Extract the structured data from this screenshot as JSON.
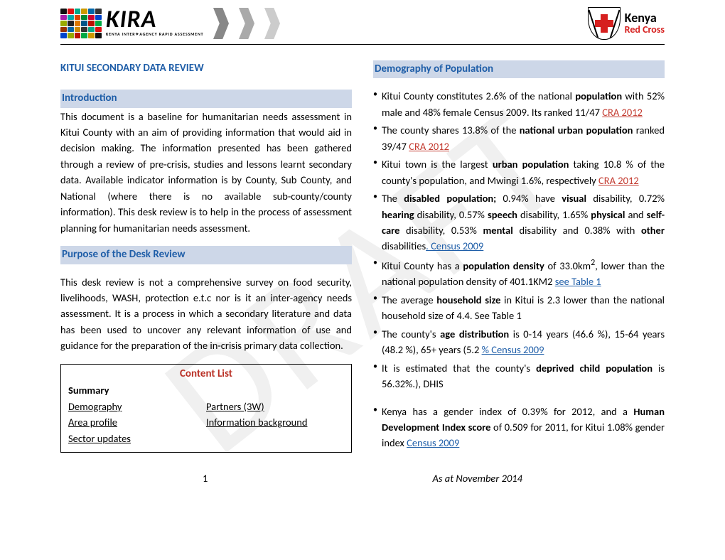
{
  "watermark": "DRAFT",
  "header": {
    "kira_name": "KIRA",
    "kira_sub": "KENYA INTER✦AGENCY RAPID ASSESSMENT",
    "kira_block_colors": [
      "#111",
      "#d11",
      "#0a8",
      "#c90",
      "#06a",
      "#333",
      "#a2a",
      "#0aa",
      "#d40",
      "#083",
      "#c03",
      "#04c",
      "#9a0",
      "#222",
      "#d70",
      "#058",
      "#b10",
      "#0a4",
      "#930",
      "#06a",
      "#c80",
      "#333",
      "#0a8",
      "#d11",
      "#04c",
      "#9a0",
      "#b10",
      "#0a4",
      "#c90",
      "#111"
    ],
    "chevron_color": "#7b7b7b",
    "krc_line1": "Kenya",
    "krc_line2": "Red Cross"
  },
  "left": {
    "mainTitle": "KITUI SECONDARY DATA REVIEW",
    "introHead": "Introduction",
    "introBody": "This document is a baseline for humanitarian needs assessment in Kitui County with an aim of providing information that would aid in decision making. The information presented has been gathered through a review of pre-crisis, studies and lessons learnt secondary data. Available indicator information is by County, Sub County, and National (where there is no available sub-county/county information). This desk review is to help in the process of assessment planning for humanitarian needs assessment.",
    "purposeHead": "Purpose of the Desk Review",
    "purposeBody": "This desk review is not a comprehensive survey on food security, livelihoods, WASH, protection e.t.c nor is it an inter-agency needs assessment. It is a process in which a secondary literature and data has been used to uncover any relevant information of use and guidance for the preparation of the in-crisis primary data collection.",
    "contentList": {
      "title": "Content List",
      "summary": "Summary",
      "col1": [
        "Demography",
        "Area profile",
        "Sector updates"
      ],
      "col2": [
        "Partners (3W)",
        "Information background"
      ]
    }
  },
  "right": {
    "demHead": "Demography of Population",
    "b1_a": "Kitui County constitutes 2.6% of the national ",
    "b1_b": "population",
    "b1_c": " with 52% male and 48% female Census 2009. Its ranked 11/47 ",
    "b1_link": "CRA 2012",
    "b2_a": "The county shares 13.8% of the ",
    "b2_b": "national urban population",
    "b2_c": " ranked 39/47 ",
    "b2_link": "CRA 2012",
    "b3_a": "Kitui  town is the largest ",
    "b3_b": "urban population",
    "b3_c": " taking 10.8 % of the county's population, and Mwingi 1.6%, respectively ",
    "b3_link": "CRA 2012",
    "b4_a": "The ",
    "b4_b": "disabled population;",
    "b4_c": " 0.94% have ",
    "b4_d": "visual",
    "b4_e": " disability, 0.72% ",
    "b4_f": "hearing",
    "b4_g": " disability, 0.57% ",
    "b4_h": "speech",
    "b4_i": " disability, 1.65% ",
    "b4_j": "physical",
    "b4_k": " and ",
    "b4_l": "self-care",
    "b4_m": " disability, 0.53% ",
    "b4_n": "mental",
    "b4_o": " disability and 0.38% with ",
    "b4_p": "other",
    "b4_q": " disabilities",
    "b4_link": ". Census 2009",
    "b5_a": "Kitui County has a ",
    "b5_b": "population density",
    "b5_c": " of 33.0km",
    "b5_sup": "2",
    "b5_d": ", lower than the national population density of 401.1KM2 ",
    "b5_link": "see Table 1",
    "b6_a": "The average ",
    "b6_b": "household size",
    "b6_c": " in Kitui is 2.3 lower than the national household size of 4.4. See Table 1",
    "b7_a": "The county's ",
    "b7_b": "age distribution",
    "b7_c": " is 0-14 years (46.6 %), 15-64 years (48.2 %), 65+ years (5.2 ",
    "b7_link": "% Census 2009",
    "b8_a": "It is estimated that the county's ",
    "b8_b": "deprived child population",
    "b8_c": " is 56.32%.), DHIS",
    "b9_a": "Kenya has a gender index of 0.39% for 2012, and a ",
    "b9_b": "Human Development Index score",
    "b9_c": " of 0.509 for 2011, for Kitui 1.08% gender index ",
    "b9_link": "Census 2009"
  },
  "footer": {
    "pageNum": "1",
    "asOf": "As at November 2014"
  }
}
